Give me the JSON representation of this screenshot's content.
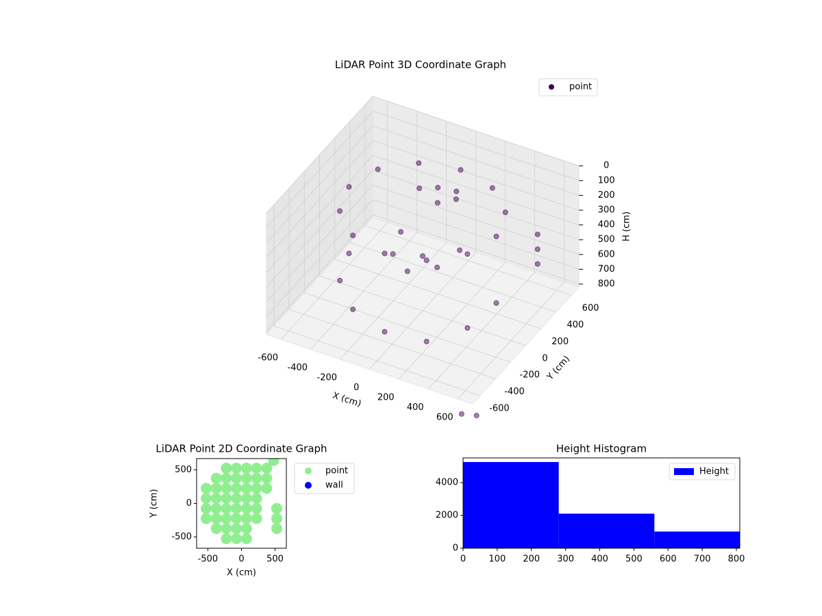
{
  "chart_data": [
    {
      "type": "scatter3d",
      "title": "LiDAR Point 3D Coordinate Graph",
      "x_label": "X (cm)",
      "y_label": "Y (cm)",
      "z_label": "H (cm)",
      "xlim": [
        -700,
        700
      ],
      "ylim": [
        -700,
        700
      ],
      "zlim": [
        0,
        820
      ],
      "z_inverted": true,
      "xticks": [
        -600,
        -400,
        -200,
        0,
        200,
        400,
        600
      ],
      "yticks": [
        -600,
        -400,
        -200,
        0,
        200,
        400,
        600
      ],
      "zticks": [
        0,
        100,
        200,
        300,
        400,
        500,
        600,
        700,
        800
      ],
      "grid": true,
      "legend": "upper right",
      "alpha": 0.5,
      "series": [
        {
          "name": "point",
          "color": "#440154",
          "x": [
            500,
            433,
            250,
            0,
            -250,
            -433,
            -500,
            -433,
            -250,
            0,
            250,
            433,
            0,
            100,
            -100,
            50,
            150,
            0,
            150,
            -150,
            200,
            -200,
            0,
            -500,
            -433,
            -250,
            0,
            250,
            433,
            500,
            600,
            600,
            600,
            600,
            650
          ],
          "y": [
            0,
            250,
            433,
            500,
            433,
            250,
            0,
            -250,
            -433,
            -500,
            -433,
            -250,
            200,
            250,
            150,
            100,
            150,
            0,
            -100,
            -100,
            100,
            100,
            -200,
            0,
            -250,
            -433,
            -500,
            -433,
            -250,
            0,
            350,
            350,
            350,
            -650,
            -550
          ],
          "z": [
            150,
            150,
            150,
            150,
            150,
            150,
            150,
            150,
            150,
            150,
            150,
            150,
            100,
            120,
            110,
            130,
            100,
            450,
            420,
            430,
            400,
            410,
            440,
            600,
            620,
            650,
            680,
            700,
            650,
            600,
            300,
            400,
            500,
            950,
            1000
          ]
        }
      ]
    },
    {
      "type": "scatter",
      "title": "LiDAR Point 2D Coordinate Graph",
      "x_label": "X (cm)",
      "y_label": "Y (cm)",
      "xlim": [
        -668,
        668
      ],
      "ylim": [
        -668,
        668
      ],
      "xticks": [
        -500,
        0,
        500
      ],
      "yticks": [
        -500,
        0,
        500
      ],
      "legend": "outside right",
      "series": [
        {
          "name": "point",
          "color": "#90ee90",
          "x": [
            -225,
            -75,
            75,
            225,
            375,
            -375,
            -225,
            -75,
            75,
            225,
            375,
            -525,
            -375,
            -225,
            -75,
            75,
            225,
            375,
            -525,
            -375,
            -225,
            -75,
            75,
            225,
            -525,
            -375,
            -225,
            -75,
            75,
            225,
            525,
            -525,
            -375,
            -225,
            -75,
            75,
            225,
            525,
            -375,
            -225,
            -75,
            75,
            525,
            -225,
            -75,
            75,
            480
          ],
          "y": [
            525,
            525,
            525,
            525,
            525,
            375,
            375,
            375,
            375,
            375,
            375,
            225,
            225,
            225,
            225,
            225,
            225,
            225,
            75,
            75,
            75,
            75,
            75,
            75,
            -75,
            -75,
            -75,
            -75,
            -75,
            -75,
            -75,
            -225,
            -225,
            -225,
            -225,
            -225,
            -225,
            -225,
            -375,
            -375,
            -375,
            -375,
            -375,
            -525,
            -525,
            -525,
            640
          ]
        },
        {
          "name": "wall",
          "color": "#0000ff",
          "x": [],
          "y": []
        }
      ]
    },
    {
      "type": "histogram",
      "title": "Height Histogram",
      "name": "Height",
      "color": "#0000ff",
      "bins": [
        0,
        280,
        560,
        840
      ],
      "values": [
        5260,
        2110,
        1020
      ],
      "xlim": [
        0,
        810
      ],
      "ylim": [
        0,
        5512
      ],
      "xticks": [
        0,
        100,
        200,
        300,
        400,
        500,
        600,
        700,
        800
      ],
      "yticks": [
        0,
        2000,
        4000
      ],
      "legend": "upper right"
    }
  ]
}
